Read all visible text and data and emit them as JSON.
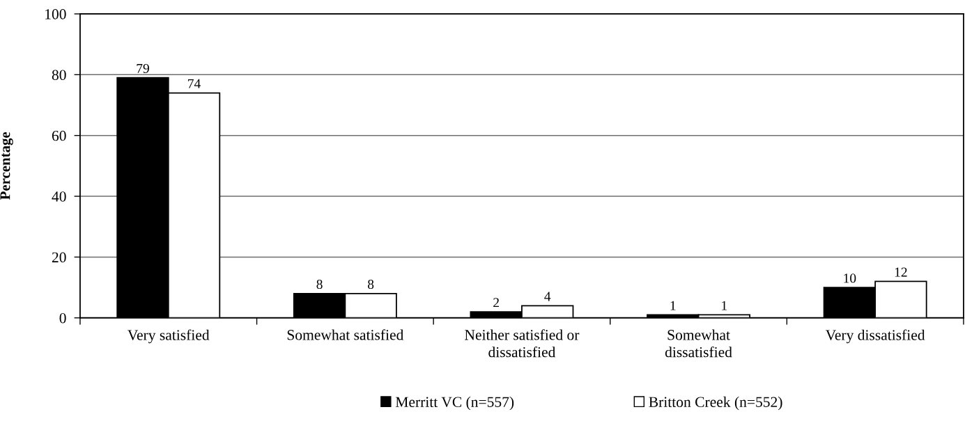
{
  "chart_data": {
    "type": "bar",
    "ylabel": "Percentage",
    "categories": [
      "Very satisfied",
      "Somewhat satisfied",
      "Neither satisfied or dissatisfied",
      "Somewhat dissatisfied",
      "Very dissatisfied"
    ],
    "series": [
      {
        "name": "Merritt VC (n=557)",
        "color": "#000000",
        "values": [
          79,
          8,
          2,
          1,
          10
        ]
      },
      {
        "name": "Britton Creek (n=552)",
        "color": "#ffffff",
        "values": [
          74,
          8,
          4,
          1,
          12
        ]
      }
    ],
    "ylim": [
      0,
      100
    ],
    "yticks": [
      0,
      20,
      40,
      60,
      80,
      100
    ],
    "grid": "y",
    "legend": "bottom",
    "data_labels": true
  }
}
